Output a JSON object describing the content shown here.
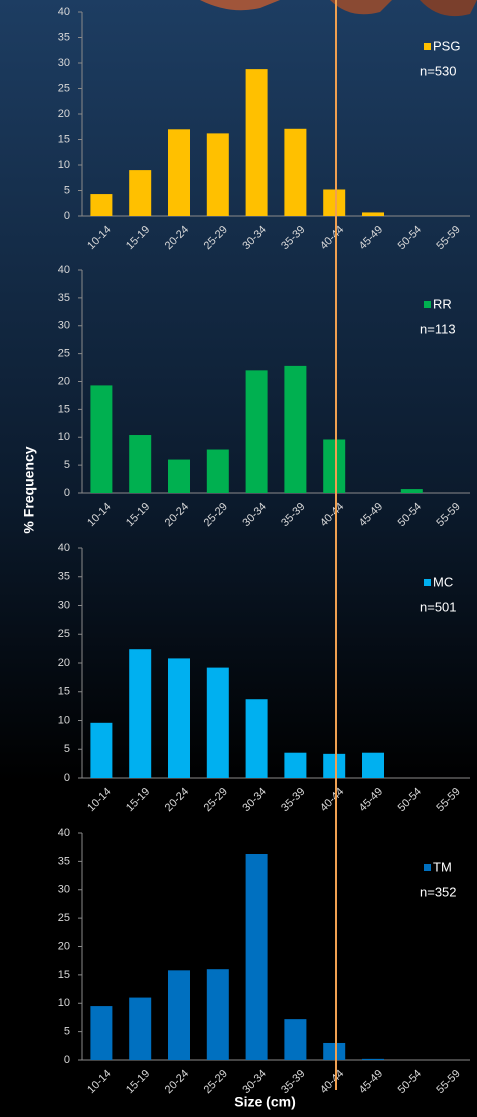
{
  "y_axis_label": "% Frequency",
  "x_axis_label": "Size (cm)",
  "chart_data": [
    {
      "type": "bar",
      "categories": [
        "10-14",
        "15-19",
        "20-24",
        "25-29",
        "30-34",
        "35-39",
        "40-44",
        "45-49",
        "50-54",
        "55-59"
      ],
      "series": [
        {
          "name": "PSG",
          "color": "#ffc000",
          "values": [
            4.3,
            9,
            17,
            16.2,
            28.8,
            17.1,
            5.2,
            0.7,
            0,
            0
          ]
        }
      ],
      "annotation": "n=530",
      "ylim": [
        0,
        40
      ],
      "yticks": [
        0,
        5,
        10,
        15,
        20,
        25,
        30,
        35,
        40
      ]
    },
    {
      "type": "bar",
      "categories": [
        "10-14",
        "15-19",
        "20-24",
        "25-29",
        "30-34",
        "35-39",
        "40-44",
        "45-49",
        "50-54",
        "55-59"
      ],
      "series": [
        {
          "name": "RR",
          "color": "#00b050",
          "values": [
            19.3,
            10.4,
            6,
            7.8,
            22,
            22.8,
            9.6,
            0,
            0.7,
            0
          ]
        }
      ],
      "annotation": "n=113",
      "ylim": [
        0,
        40
      ],
      "yticks": [
        0,
        5,
        10,
        15,
        20,
        25,
        30,
        35,
        40
      ]
    },
    {
      "type": "bar",
      "categories": [
        "10-14",
        "15-19",
        "20-24",
        "25-29",
        "30-34",
        "35-39",
        "40-44",
        "45-49",
        "50-54",
        "55-59"
      ],
      "series": [
        {
          "name": "MC",
          "color": "#00b0f0",
          "values": [
            9.6,
            22.4,
            20.8,
            19.2,
            13.7,
            4.4,
            4.2,
            4.4,
            0,
            0
          ]
        }
      ],
      "annotation": "n=501",
      "ylim": [
        0,
        40
      ],
      "yticks": [
        0,
        5,
        10,
        15,
        20,
        25,
        30,
        35,
        40
      ]
    },
    {
      "type": "bar",
      "categories": [
        "10-14",
        "15-19",
        "20-24",
        "25-29",
        "30-34",
        "35-39",
        "40-44",
        "45-49",
        "50-54",
        "55-59"
      ],
      "series": [
        {
          "name": "TM",
          "color": "#0070c0",
          "values": [
            9.5,
            11,
            15.8,
            16,
            36.3,
            7.2,
            3,
            0.2,
            0,
            0
          ]
        }
      ],
      "annotation": "n=352",
      "ylim": [
        0,
        40
      ],
      "yticks": [
        0,
        5,
        10,
        15,
        20,
        25,
        30,
        35,
        40
      ]
    }
  ]
}
